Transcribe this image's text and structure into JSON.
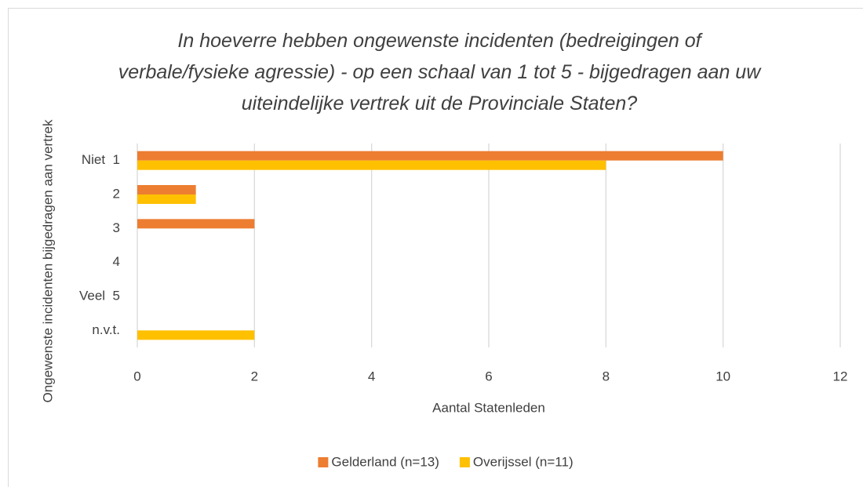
{
  "chart_data": {
    "type": "barh",
    "title": "In hoeverre hebben ongewenste incidenten (bedreigingen of verbale/fysieke agressie) - op een schaal van 1 tot 5 - bijgedragen aan uw uiteindelijke vertrek uit de Provinciale Staten?",
    "x_label": "Aantal Statenleden",
    "y_label": "Ongewenste incidenten bijgedragen aan vertrek",
    "categories": [
      "Niet  1",
      "2",
      "3",
      "4",
      "Veel  5",
      "n.v.t."
    ],
    "series": [
      {
        "name": "Gelderland (n=13)",
        "color": "#ED7D31",
        "values": [
          10,
          1,
          2,
          0,
          0,
          0
        ]
      },
      {
        "name": "Overijssel (n=11)",
        "color": "#FFC000",
        "values": [
          8,
          1,
          0,
          0,
          0,
          2
        ]
      }
    ],
    "xlim": [
      0,
      12
    ],
    "xticks": [
      0,
      2,
      4,
      6,
      8,
      10,
      12
    ],
    "grid": true,
    "legend": "bottom"
  }
}
